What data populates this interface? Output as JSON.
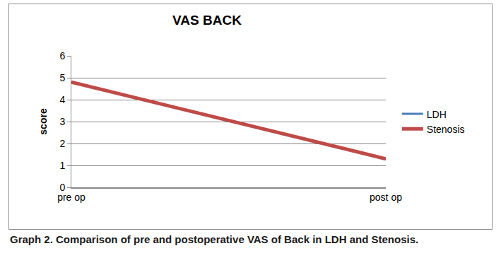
{
  "chart_data": {
    "type": "line",
    "title": "VAS BACK",
    "y_label": "score",
    "caption": "Graph 2. Comparison of pre and postoperative VAS of Back in LDH and Stenosis.",
    "categories": [
      "pre op",
      "post op"
    ],
    "series": [
      {
        "name": "LDH",
        "color": "#4a7ebb",
        "values": [
          4.8,
          1.3
        ]
      },
      {
        "name": "Stenosis",
        "color": "#be4b48",
        "values": [
          4.8,
          1.3
        ]
      }
    ],
    "ylim": [
      0,
      6
    ],
    "yticks": [
      0,
      1,
      2,
      3,
      4,
      5,
      6
    ],
    "grid": true,
    "legend": "right"
  }
}
